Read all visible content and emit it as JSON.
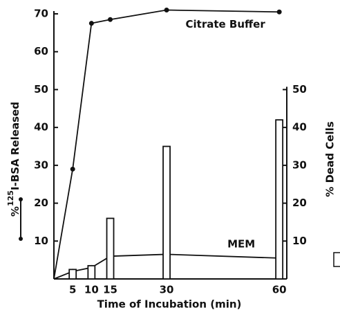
{
  "chart_data": {
    "type": "line",
    "xlabel": "Time of Incubation (min)",
    "ylabel_prefix": "%",
    "ylabel_superscript": "125",
    "ylabel_main": "I-BSA Released",
    "y2label": "% Dead Cells",
    "xlim": [
      0,
      62
    ],
    "xticks": [
      5,
      10,
      15,
      30,
      60
    ],
    "ylim": [
      0,
      70
    ],
    "yticks": [
      10,
      20,
      30,
      40,
      50,
      60,
      70
    ],
    "y2lim": [
      0,
      70
    ],
    "y2ticks": [
      10,
      20,
      30,
      40,
      50
    ],
    "color": "#111111",
    "series": [
      {
        "name": "Citrate Buffer",
        "type": "line",
        "marker": "circle",
        "x": [
          0,
          5,
          10,
          15,
          30,
          60
        ],
        "values": [
          0,
          29,
          67.5,
          68.5,
          71,
          70.5
        ]
      },
      {
        "name": "MEM",
        "type": "line",
        "marker": "triangle",
        "x": [
          0,
          5,
          10,
          15,
          30,
          60
        ],
        "values": [
          0,
          2,
          3,
          6,
          6.5,
          5.5
        ]
      },
      {
        "type": "bar",
        "axis": "y2",
        "x": [
          5,
          10,
          15,
          30,
          60
        ],
        "values": [
          2.5,
          3.5,
          16,
          35,
          42
        ]
      }
    ]
  }
}
